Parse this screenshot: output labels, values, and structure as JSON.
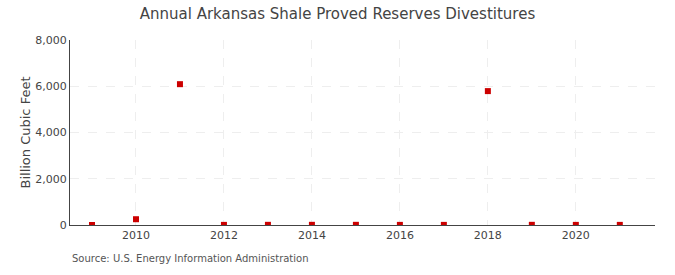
{
  "chart_data": {
    "type": "scatter",
    "title": "Annual Arkansas Shale Proved Reserves Divestitures",
    "ylabel": "Billion Cubic Feet",
    "annotations": [
      "Source: U.S. Energy Information Administration"
    ],
    "x": [
      2009,
      2010,
      2011,
      2012,
      2013,
      2014,
      2015,
      2016,
      2017,
      2018,
      2019,
      2020,
      2021
    ],
    "values": [
      0,
      250,
      6090,
      5,
      8,
      8,
      8,
      5,
      5,
      5790,
      8,
      5,
      5
    ],
    "color": "#cc0000",
    "marker": "square",
    "xlim": [
      2008.5,
      2021.8
    ],
    "xticks": [
      2010,
      2012,
      2014,
      2016,
      2018,
      2020
    ],
    "ylim": [
      0,
      8000
    ],
    "yticks": [
      0,
      {
        "value": 2000,
        "label": "2,000"
      },
      {
        "value": 4000,
        "label": "4,000"
      },
      {
        "value": 6000,
        "label": "6,000"
      },
      {
        "value": 8000,
        "label": "8,000"
      }
    ],
    "grid": true
  }
}
